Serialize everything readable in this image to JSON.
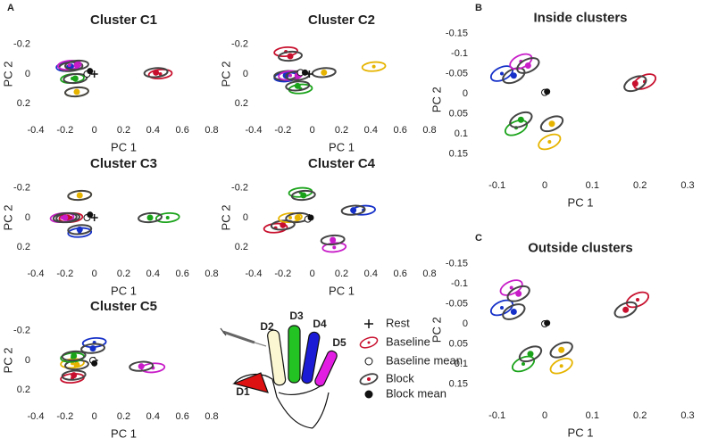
{
  "panel_labels": [
    "A",
    "B",
    "C"
  ],
  "chart_data": [
    {
      "type": "scatter",
      "title": "Cluster C1",
      "xlabel": "PC 1",
      "ylabel": "PC 2",
      "xlim": [
        -0.4,
        0.8
      ],
      "ylim": [
        0.3,
        -0.3
      ],
      "xticks": [
        -0.4,
        -0.2,
        0,
        0.2,
        0.4,
        0.6,
        0.8
      ],
      "yticks": [
        -0.2,
        0,
        0.2
      ],
      "rest": [
        0,
        0
      ],
      "baseline_mean": [
        -0.05,
        0
      ],
      "block_mean": [
        -0.03,
        -0.02
      ],
      "series": [
        {
          "color": "#c8102e",
          "x": [
            0.45,
            0.42
          ],
          "y": [
            0.0,
            -0.01
          ]
        },
        {
          "color": "#e6b400",
          "x": [
            -0.12,
            -0.12
          ],
          "y": [
            0.12,
            0.12
          ]
        },
        {
          "color": "#1aa31a",
          "x": [
            -0.15,
            -0.13
          ],
          "y": [
            0.03,
            0.03
          ]
        },
        {
          "color": "#1530c8",
          "x": [
            -0.18,
            -0.16
          ],
          "y": [
            -0.05,
            -0.05
          ]
        },
        {
          "color": "#c81cc8",
          "x": [
            -0.17,
            -0.12
          ],
          "y": [
            -0.06,
            -0.06
          ]
        }
      ]
    },
    {
      "type": "scatter",
      "title": "Cluster C2",
      "xlabel": "PC 1",
      "ylabel": "PC 2",
      "xlim": [
        -0.4,
        0.8
      ],
      "ylim": [
        0.3,
        -0.3
      ],
      "xticks": [
        -0.4,
        -0.2,
        0,
        0.2,
        0.4,
        0.6,
        0.8
      ],
      "yticks": [
        -0.2,
        0,
        0.2
      ],
      "rest": [
        -0.02,
        0
      ],
      "baseline_mean": [
        -0.08,
        -0.01
      ],
      "block_mean": [
        -0.05,
        -0.01
      ],
      "series": [
        {
          "color": "#c8102e",
          "x": [
            -0.18,
            -0.15
          ],
          "y": [
            -0.15,
            -0.12
          ]
        },
        {
          "color": "#e6b400",
          "x": [
            0.42,
            0.08
          ],
          "y": [
            -0.05,
            -0.01
          ]
        },
        {
          "color": "#1aa31a",
          "x": [
            -0.08,
            -0.1
          ],
          "y": [
            0.1,
            0.08
          ]
        },
        {
          "color": "#1530c8",
          "x": [
            -0.18,
            -0.18
          ],
          "y": [
            0.02,
            0.01
          ]
        },
        {
          "color": "#c81cc8",
          "x": [
            -0.15,
            -0.1
          ],
          "y": [
            0.01,
            0.01
          ]
        }
      ]
    },
    {
      "type": "scatter",
      "title": "Cluster C3",
      "xlabel": "PC 1",
      "ylabel": "PC 2",
      "xlim": [
        -0.4,
        0.8
      ],
      "ylim": [
        0.3,
        -0.3
      ],
      "xticks": [
        -0.4,
        -0.2,
        0,
        0.2,
        0.4,
        0.6,
        0.8
      ],
      "yticks": [
        -0.2,
        0,
        0.2
      ],
      "rest": [
        0,
        0
      ],
      "baseline_mean": [
        -0.05,
        0
      ],
      "block_mean": [
        -0.03,
        -0.02
      ],
      "series": [
        {
          "color": "#c8102e",
          "x": [
            -0.16,
            -0.18
          ],
          "y": [
            0.0,
            0.0
          ]
        },
        {
          "color": "#e6b400",
          "x": [
            -0.1,
            -0.1
          ],
          "y": [
            -0.15,
            -0.15
          ]
        },
        {
          "color": "#1aa31a",
          "x": [
            0.5,
            0.38
          ],
          "y": [
            0.0,
            0.0
          ]
        },
        {
          "color": "#1530c8",
          "x": [
            -0.1,
            -0.1
          ],
          "y": [
            0.1,
            0.08
          ]
        },
        {
          "color": "#c81cc8",
          "x": [
            -0.22,
            -0.2
          ],
          "y": [
            0.0,
            0.0
          ]
        }
      ]
    },
    {
      "type": "scatter",
      "title": "Cluster C4",
      "xlabel": "PC 1",
      "ylabel": "PC 2",
      "xlim": [
        -0.4,
        0.8
      ],
      "ylim": [
        0.3,
        -0.3
      ],
      "xticks": [
        -0.4,
        -0.2,
        0,
        0.2,
        0.4,
        0.6,
        0.8
      ],
      "yticks": [
        -0.2,
        0,
        0.2
      ],
      "rest": [
        -0.02,
        0
      ],
      "baseline_mean": [
        -0.03,
        0.01
      ],
      "block_mean": [
        -0.01,
        0.0
      ],
      "series": [
        {
          "color": "#c8102e",
          "x": [
            -0.25,
            -0.2
          ],
          "y": [
            0.07,
            0.05
          ]
        },
        {
          "color": "#e6b400",
          "x": [
            -0.15,
            -0.1
          ],
          "y": [
            0.0,
            0.0
          ]
        },
        {
          "color": "#1aa31a",
          "x": [
            -0.08,
            -0.06
          ],
          "y": [
            -0.17,
            -0.15
          ]
        },
        {
          "color": "#1530c8",
          "x": [
            0.35,
            0.28
          ],
          "y": [
            -0.05,
            -0.05
          ]
        },
        {
          "color": "#c81cc8",
          "x": [
            0.15,
            0.14
          ],
          "y": [
            0.2,
            0.15
          ]
        }
      ]
    },
    {
      "type": "scatter",
      "title": "Cluster C5",
      "xlabel": "PC 1",
      "ylabel": "PC 2",
      "xlim": [
        -0.4,
        0.8
      ],
      "ylim": [
        0.3,
        -0.3
      ],
      "xticks": [
        -0.4,
        -0.2,
        0,
        0.2,
        0.4,
        0.6,
        0.8
      ],
      "yticks": [
        -0.2,
        0,
        0.2
      ],
      "rest": [
        0,
        0
      ],
      "baseline_mean": [
        -0.01,
        0.0
      ],
      "block_mean": [
        0,
        0.02
      ],
      "series": [
        {
          "color": "#c8102e",
          "x": [
            -0.15,
            -0.14
          ],
          "y": [
            0.12,
            0.1
          ]
        },
        {
          "color": "#e6b400",
          "x": [
            -0.15,
            -0.12
          ],
          "y": [
            0.02,
            0.03
          ]
        },
        {
          "color": "#1aa31a",
          "x": [
            -0.15,
            -0.14
          ],
          "y": [
            -0.02,
            -0.03
          ]
        },
        {
          "color": "#1530c8",
          "x": [
            0.0,
            -0.01
          ],
          "y": [
            -0.12,
            -0.08
          ]
        },
        {
          "color": "#c81cc8",
          "x": [
            0.4,
            0.32
          ],
          "y": [
            0.05,
            0.04
          ]
        }
      ]
    },
    {
      "type": "scatter",
      "title": "Inside clusters",
      "xlabel": "PC 1",
      "ylabel": "PC 2",
      "xlim": [
        -0.15,
        0.3
      ],
      "ylim": [
        0.2,
        -0.17
      ],
      "xticks": [
        -0.1,
        0,
        0.1,
        0.2,
        0.3
      ],
      "yticks": [
        -0.15,
        -0.1,
        -0.05,
        0,
        0.05,
        0.1,
        0.15
      ],
      "baseline_mean": [
        0.0,
        -0.003
      ],
      "block_mean": [
        0.005,
        -0.005
      ],
      "series": [
        {
          "color": "#c8102e",
          "x": [
            0.21,
            0.19
          ],
          "y": [
            -0.03,
            -0.025
          ]
        },
        {
          "color": "#e6b400",
          "x": [
            0.01,
            0.015
          ],
          "y": [
            0.12,
            0.075
          ]
        },
        {
          "color": "#1aa31a",
          "x": [
            -0.06,
            -0.05
          ],
          "y": [
            0.085,
            0.065
          ]
        },
        {
          "color": "#1530c8",
          "x": [
            -0.09,
            -0.065
          ],
          "y": [
            -0.05,
            -0.045
          ]
        },
        {
          "color": "#c81cc8",
          "x": [
            -0.05,
            -0.035
          ],
          "y": [
            -0.08,
            -0.07
          ]
        }
      ]
    },
    {
      "type": "scatter",
      "title": "Outside clusters",
      "xlabel": "PC 1",
      "ylabel": "PC 2",
      "xlim": [
        -0.15,
        0.3
      ],
      "ylim": [
        0.2,
        -0.17
      ],
      "xticks": [
        -0.1,
        0,
        0.1,
        0.2,
        0.3
      ],
      "yticks": [
        -0.15,
        -0.1,
        -0.05,
        0,
        0.05,
        0.1,
        0.15
      ],
      "baseline_mean": [
        0.0,
        0.0
      ],
      "block_mean": [
        0.005,
        -0.002
      ],
      "series": [
        {
          "color": "#c8102e",
          "x": [
            0.195,
            0.17
          ],
          "y": [
            -0.06,
            -0.035
          ]
        },
        {
          "color": "#e6b400",
          "x": [
            0.035,
            0.035
          ],
          "y": [
            0.105,
            0.065
          ]
        },
        {
          "color": "#1aa31a",
          "x": [
            -0.045,
            -0.03
          ],
          "y": [
            0.1,
            0.075
          ]
        },
        {
          "color": "#1530c8",
          "x": [
            -0.09,
            -0.065
          ],
          "y": [
            -0.04,
            -0.03
          ]
        },
        {
          "color": "#c81cc8",
          "x": [
            -0.07,
            -0.055
          ],
          "y": [
            -0.09,
            -0.075
          ]
        }
      ]
    }
  ],
  "legend": {
    "digits": [
      "D1",
      "D2",
      "D3",
      "D4",
      "D5"
    ],
    "entries": [
      "Rest",
      "Baseline",
      "Baseline mean",
      "Block",
      "Block mean"
    ]
  }
}
